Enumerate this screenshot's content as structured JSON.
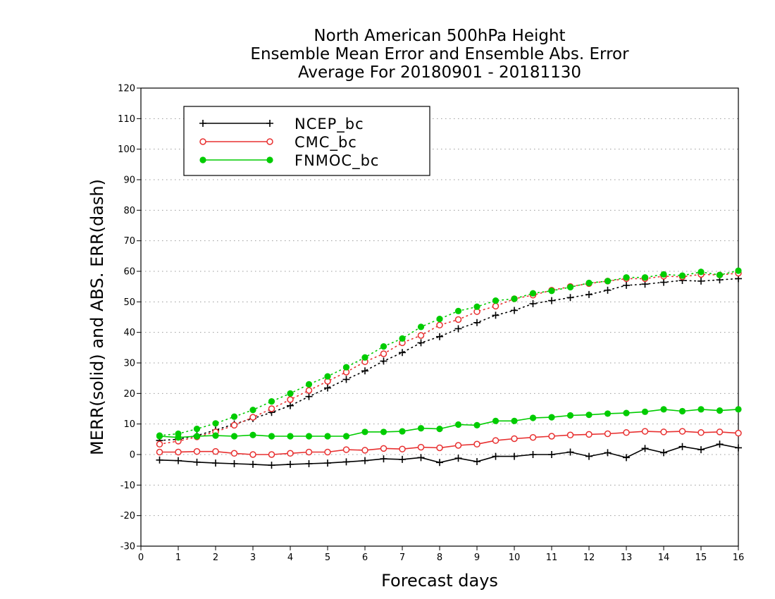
{
  "chart_data": {
    "type": "line",
    "title": [
      "North American 500hPa Height",
      "Ensemble Mean Error and Ensemble Abs. Error",
      "Average For 20180901 - 20181130"
    ],
    "xlabel": "Forecast days",
    "ylabel": "MERR(solid) and ABS. ERR(dash)",
    "xlim": [
      0,
      16
    ],
    "ylim": [
      -30,
      120
    ],
    "xticks": [
      0,
      1,
      2,
      3,
      4,
      5,
      6,
      7,
      8,
      9,
      10,
      11,
      12,
      13,
      14,
      15,
      16
    ],
    "yticks": [
      -30,
      -20,
      -10,
      0,
      10,
      20,
      30,
      40,
      50,
      60,
      70,
      80,
      90,
      100,
      110,
      120
    ],
    "grid": true,
    "legend_position": "top-left",
    "x": [
      0.5,
      1,
      1.5,
      2,
      2.5,
      3,
      3.5,
      4,
      4.5,
      5,
      5.5,
      6,
      6.5,
      7,
      7.5,
      8,
      8.5,
      9,
      9.5,
      10,
      10.5,
      11,
      11.5,
      12,
      12.5,
      13,
      13.5,
      14,
      14.5,
      15,
      15.5,
      16
    ],
    "series": [
      {
        "name": "NCEP_bc",
        "color": "#000000",
        "marker": "plus",
        "merr": [
          -1.8,
          -2.0,
          -2.5,
          -2.8,
          -3.0,
          -3.2,
          -3.5,
          -3.2,
          -3.0,
          -2.8,
          -2.4,
          -2.0,
          -1.4,
          -1.6,
          -1.0,
          -2.6,
          -1.2,
          -2.3,
          -0.6,
          -0.6,
          0.0,
          0.0,
          0.8,
          -0.6,
          0.6,
          -1.0,
          2.0,
          0.6,
          2.6,
          1.6,
          3.4,
          2.2
        ],
        "abs_err": [
          4.6,
          5.0,
          6.2,
          8.0,
          10.0,
          11.8,
          13.8,
          16.0,
          19.0,
          21.8,
          24.6,
          27.4,
          30.6,
          33.4,
          36.6,
          38.6,
          41.2,
          43.2,
          45.6,
          47.2,
          49.4,
          50.4,
          51.4,
          52.4,
          53.8,
          55.4,
          55.8,
          56.4,
          57.0,
          56.8,
          57.2,
          57.6
        ]
      },
      {
        "name": "CMC_bc",
        "color": "#e83030",
        "marker": "open-circle",
        "merr": [
          0.8,
          0.8,
          1.0,
          1.0,
          0.4,
          0.0,
          0.0,
          0.4,
          0.8,
          0.8,
          1.6,
          1.4,
          2.0,
          1.8,
          2.4,
          2.2,
          3.0,
          3.4,
          4.6,
          5.2,
          5.6,
          6.0,
          6.4,
          6.6,
          6.8,
          7.2,
          7.6,
          7.4,
          7.6,
          7.2,
          7.4,
          7.0
        ],
        "abs_err": [
          3.4,
          4.4,
          5.8,
          7.4,
          9.6,
          12.2,
          15.0,
          18.0,
          21.0,
          24.0,
          27.0,
          30.4,
          33.0,
          36.6,
          39.0,
          42.4,
          44.2,
          46.8,
          48.6,
          51.0,
          52.2,
          53.8,
          55.0,
          56.0,
          56.8,
          57.6,
          57.6,
          58.4,
          58.2,
          59.0,
          58.8,
          59.4
        ]
      },
      {
        "name": "FNMOC_bc",
        "color": "#00cc00",
        "marker": "filled-circle",
        "merr": [
          6.0,
          5.6,
          6.0,
          6.2,
          6.0,
          6.4,
          6.0,
          6.0,
          6.0,
          6.0,
          6.0,
          7.4,
          7.4,
          7.6,
          8.6,
          8.4,
          9.8,
          9.6,
          11.0,
          11.0,
          12.0,
          12.2,
          12.8,
          13.0,
          13.4,
          13.6,
          14.0,
          14.8,
          14.2,
          14.8,
          14.4,
          14.8
        ],
        "abs_err": [
          6.2,
          6.8,
          8.4,
          10.2,
          12.4,
          14.6,
          17.4,
          20.0,
          23.0,
          25.6,
          28.6,
          31.8,
          35.4,
          38.0,
          41.8,
          44.4,
          47.0,
          48.4,
          50.4,
          51.0,
          52.8,
          53.6,
          54.8,
          56.2,
          56.8,
          58.0,
          58.0,
          59.0,
          58.6,
          59.8,
          58.8,
          60.2
        ]
      }
    ]
  }
}
